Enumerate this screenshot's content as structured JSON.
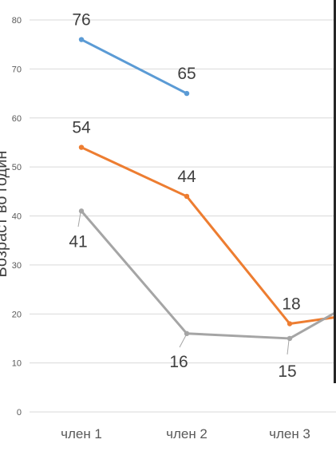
{
  "chart_data": {
    "type": "line",
    "categories": [
      "член 1",
      "член 2",
      "член 3"
    ],
    "ylabel": "Возраст во годин",
    "ylim": [
      0,
      80
    ],
    "yticks": [
      0,
      10,
      20,
      30,
      40,
      50,
      60,
      70,
      80
    ],
    "grid": true,
    "series": [
      {
        "color": "#5b9bd5",
        "values": [
          76,
          65,
          null
        ],
        "labels": [
          "76",
          "65",
          ""
        ]
      },
      {
        "color": "#ed7d31",
        "values": [
          54,
          44,
          18
        ],
        "labels": [
          "54",
          "44",
          "18"
        ]
      },
      {
        "color": "#a5a5a5",
        "values": [
          41,
          16,
          15
        ],
        "labels": [
          "41",
          "16",
          "15"
        ]
      }
    ]
  }
}
